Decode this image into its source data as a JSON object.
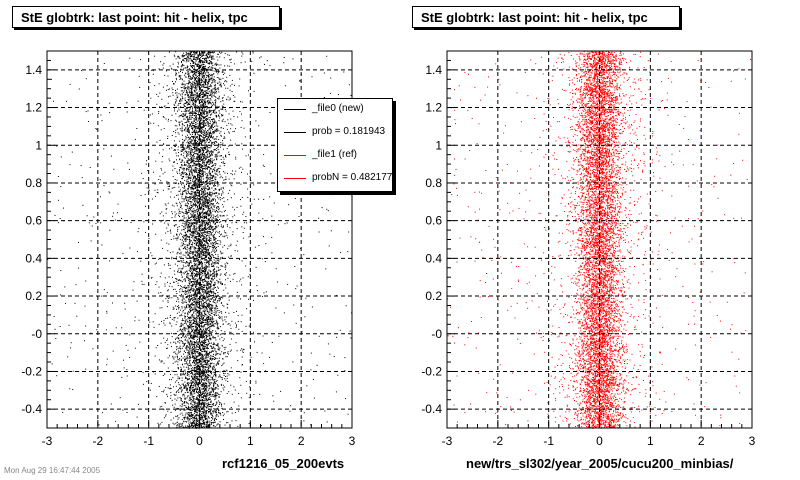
{
  "chart_data": [
    {
      "type": "scatter",
      "title": "StE globtrk: last point: hit - helix, tpc",
      "xlabel": "rcf1216_05_200evts",
      "ylabel": "",
      "xlim": [
        -3,
        3
      ],
      "ylim": [
        -0.5,
        1.5
      ],
      "xticks": [
        "-3",
        "-2",
        "-1",
        "0",
        "1",
        "2",
        "3"
      ],
      "yticks": [
        "-0.4",
        "-0.2",
        "-0",
        "0.2",
        "0.4",
        "0.6",
        "0.8",
        "1",
        "1.2",
        "1.4"
      ],
      "grid": true,
      "series": [
        {
          "name": "_file0 (new)",
          "color": "#000000",
          "x_center": 0.0,
          "x_spread": 0.22,
          "tail_spread": 1.2
        }
      ]
    },
    {
      "type": "scatter",
      "title": "StE globtrk: last point: hit - helix, tpc",
      "xlabel": "new/trs_sl302/year_2005/cucu200_minbias/",
      "ylabel": "",
      "xlim": [
        -3,
        3
      ],
      "ylim": [
        -0.5,
        1.5
      ],
      "xticks": [
        "-3",
        "-2",
        "-1",
        "0",
        "1",
        "2",
        "3"
      ],
      "yticks": [
        "-0.4",
        "-0.2",
        "-0",
        "0.2",
        "0.4",
        "0.6",
        "0.8",
        "1",
        "1.2",
        "1.4"
      ],
      "grid": true,
      "series": [
        {
          "name": "_file1 (ref)",
          "color": "#ff0000",
          "x_center": 0.0,
          "x_spread": 0.22,
          "tail_spread": 1.2
        }
      ]
    }
  ],
  "legend": {
    "placement": "top-right",
    "entries": [
      {
        "label": "_file0 (new)",
        "color": "#000000"
      },
      {
        "label": "prob = 0.181943",
        "color": "#000000"
      },
      {
        "label": "_file1 (ref)",
        "color": "#ff0000"
      },
      {
        "label": "probN = 0.482177",
        "color": "#ff0000"
      }
    ]
  },
  "footer_text": "Mon Aug 29 16:47:44 2005"
}
